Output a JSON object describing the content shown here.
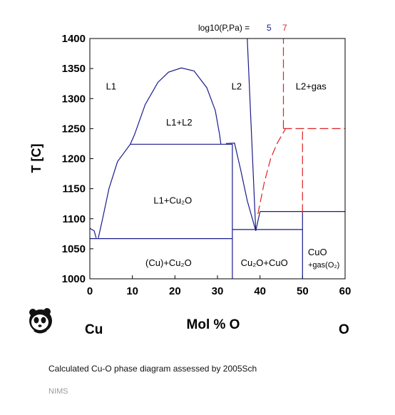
{
  "chart_data": {
    "type": "line",
    "title": "",
    "xlabel": "Mol % O",
    "ylabel": "T [C]",
    "xlim": [
      0,
      60
    ],
    "ylim": [
      1000,
      1400
    ],
    "x_ticks": [
      "0",
      "10",
      "20",
      "30",
      "40",
      "50",
      "60"
    ],
    "y_ticks": [
      "1000",
      "1050",
      "1100",
      "1150",
      "1200",
      "1250",
      "1300",
      "1350",
      "1400"
    ],
    "grid": false,
    "legend": {
      "prefix": "log10(P,Pa) = ",
      "entries": [
        {
          "name": "5",
          "color": "#1a1a8c"
        },
        {
          "name": "7",
          "color": "#dd2222"
        }
      ],
      "placement": "top-right"
    },
    "element_left": "Cu",
    "element_right": "O",
    "phase_labels": [
      {
        "text": "L1",
        "x": 5,
        "y": 1320
      },
      {
        "text": "L2",
        "x": 34.5,
        "y": 1320
      },
      {
        "text": "L2+gas",
        "x": 52,
        "y": 1320
      },
      {
        "text": "L1+L2",
        "x": 21,
        "y": 1260
      },
      {
        "text": "L1+Cu₂O",
        "x": 19.5,
        "y": 1130
      },
      {
        "text": "(Cu)+Cu₂O",
        "x": 18.5,
        "y": 1026
      },
      {
        "text": "Cu₂O+CuO",
        "x": 41,
        "y": 1026
      },
      {
        "text": "CuO",
        "x": 53.5,
        "y": 1044
      },
      {
        "text": "+gas(O₂)",
        "x": 55,
        "y": 1024
      }
    ],
    "series": [
      {
        "name": "5",
        "color": "#1a1a8c",
        "style": "solid",
        "lines": [
          [
            [
              0,
              1084
            ],
            [
              1.0,
              1080
            ],
            [
              1.5,
              1068
            ]
          ],
          [
            [
              2,
              1068
            ],
            [
              3,
              1100
            ],
            [
              4.5,
              1150
            ],
            [
              6.5,
              1195
            ],
            [
              9.5,
              1224
            ]
          ],
          [
            [
              9.5,
              1224
            ],
            [
              10.5,
              1240
            ],
            [
              13,
              1290
            ],
            [
              16,
              1327
            ],
            [
              18.5,
              1344
            ],
            [
              21.5,
              1351
            ],
            [
              24.5,
              1346
            ],
            [
              27.5,
              1318
            ],
            [
              29.5,
              1280
            ],
            [
              30.5,
              1240
            ],
            [
              30.8,
              1224
            ]
          ],
          [
            [
              9.5,
              1224
            ],
            [
              33.5,
              1224
            ]
          ],
          [
            [
              32,
              1225
            ],
            [
              34,
              1226
            ],
            [
              35.5,
              1180
            ],
            [
              37,
              1130
            ],
            [
              39,
              1080
            ]
          ],
          [
            [
              39,
              1080
            ],
            [
              37,
              1400
            ]
          ],
          [
            [
              39,
              1080
            ],
            [
              40,
              1112
            ]
          ],
          [
            [
              40,
              1112
            ],
            [
              60,
              1112
            ]
          ],
          [
            [
              0,
              1067
            ],
            [
              33.5,
              1067
            ]
          ],
          [
            [
              33.5,
              1082
            ],
            [
              50,
              1082
            ]
          ],
          [
            [
              33.5,
              1000
            ],
            [
              33.5,
              1224
            ]
          ],
          [
            [
              50,
              1000
            ],
            [
              50,
              1112
            ]
          ]
        ]
      },
      {
        "name": "7",
        "color": "#dd2222",
        "style": "dashed",
        "lines": [
          [
            [
              39.5,
              1108
            ],
            [
              41,
              1160
            ],
            [
              42.5,
              1200
            ],
            [
              44,
              1225
            ],
            [
              46,
              1250
            ]
          ],
          [
            [
              45.5,
              1250
            ],
            [
              45.5,
              1400
            ]
          ],
          [
            [
              45.5,
              1250
            ],
            [
              60,
              1250
            ]
          ],
          [
            [
              50,
              1110
            ],
            [
              50,
              1250
            ]
          ]
        ]
      }
    ]
  },
  "caption": "Calculated Cu-O phase diagram assessed by 2005Sch",
  "source": "NIMS",
  "logo_icon": "panda-logo-icon"
}
